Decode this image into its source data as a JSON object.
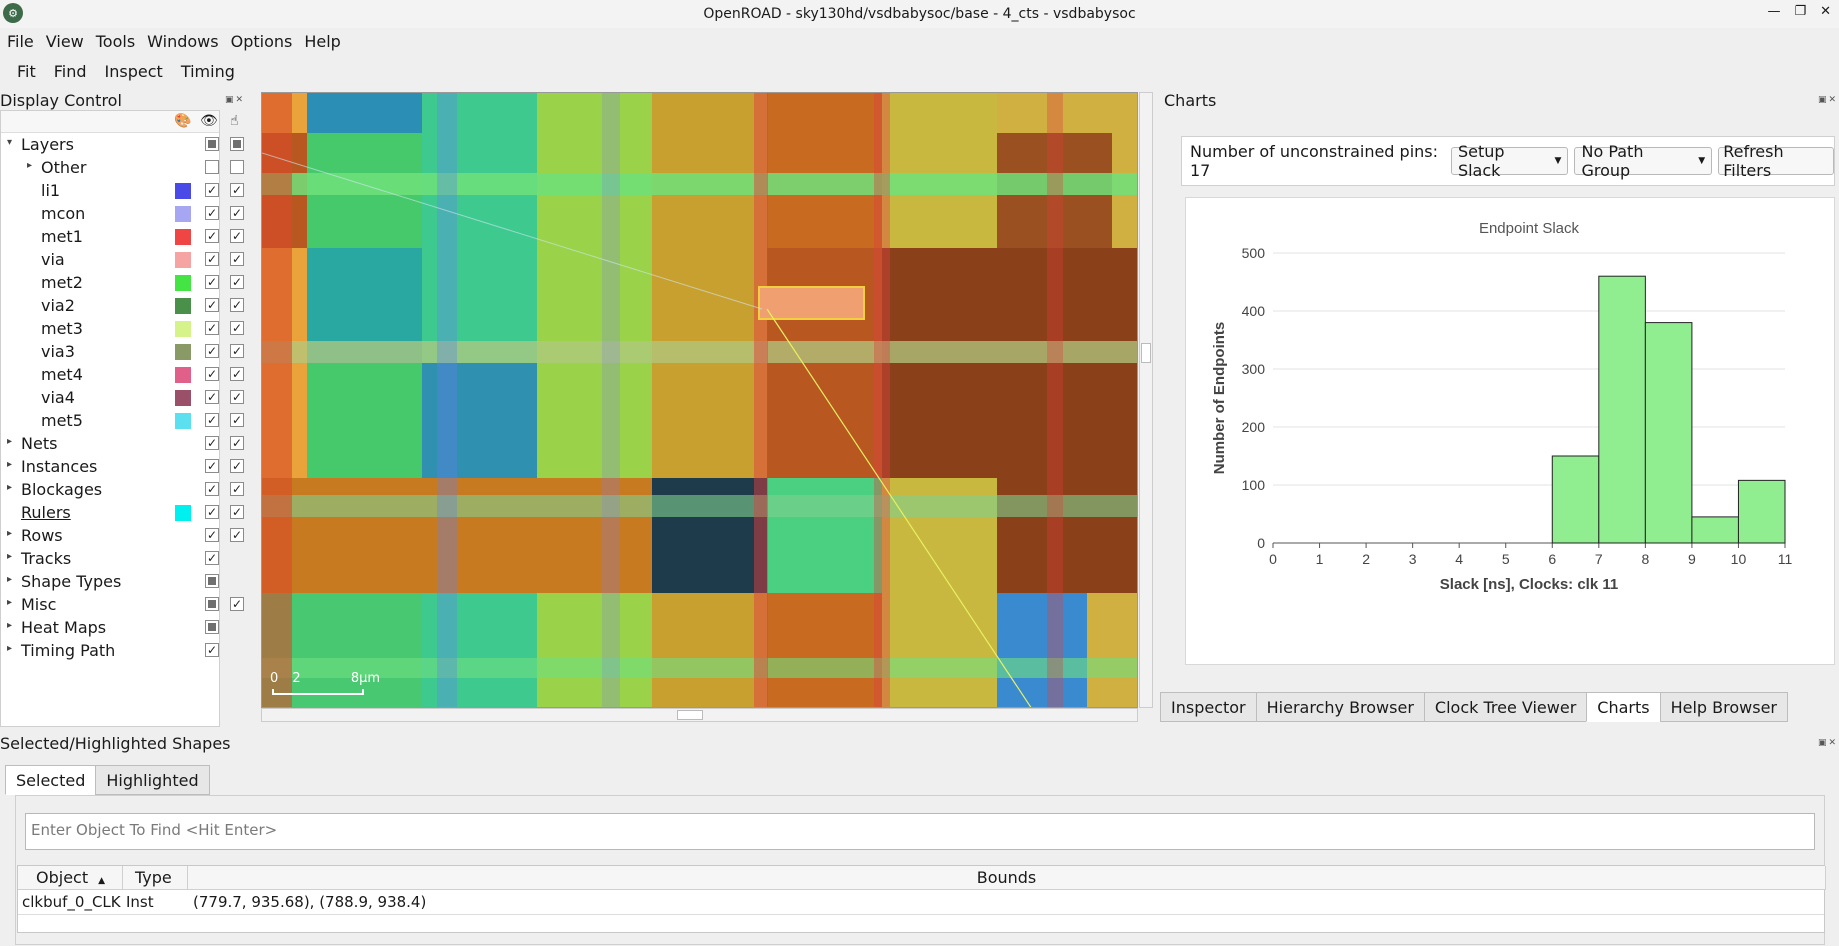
{
  "window": {
    "title": "OpenROAD - sky130hd/vsdbabysoc/base - 4_cts - vsdbabysoc"
  },
  "menu": [
    "File",
    "View",
    "Tools",
    "Windows",
    "Options",
    "Help"
  ],
  "toolbar": [
    "Fit",
    "Find",
    "Inspect",
    "Timing"
  ],
  "display_control": {
    "title": "Display Control",
    "rows": [
      {
        "label": "Layers",
        "indent": 0,
        "tri": "▾",
        "vis": "part",
        "sel": "part"
      },
      {
        "label": "Other",
        "indent": 1,
        "tri": "▸",
        "vis": "empty",
        "sel": "empty"
      },
      {
        "label": "li1",
        "indent": 1,
        "color": "#4a4ae8",
        "vis": "check",
        "sel": "check"
      },
      {
        "label": "mcon",
        "indent": 1,
        "color": "#a6a6f2",
        "vis": "check",
        "sel": "check"
      },
      {
        "label": "met1",
        "indent": 1,
        "color": "#f04545",
        "vis": "check",
        "sel": "check"
      },
      {
        "label": "via",
        "indent": 1,
        "color": "#f5a3a3",
        "vis": "check",
        "sel": "check"
      },
      {
        "label": "met2",
        "indent": 1,
        "color": "#45e445",
        "vis": "check",
        "sel": "check"
      },
      {
        "label": "via2",
        "indent": 1,
        "color": "#4a8f4a",
        "vis": "check",
        "sel": "check"
      },
      {
        "label": "met3",
        "indent": 1,
        "color": "#d6f28a",
        "vis": "check",
        "sel": "check"
      },
      {
        "label": "via3",
        "indent": 1,
        "color": "#8a9a66",
        "vis": "check",
        "sel": "check"
      },
      {
        "label": "met4",
        "indent": 1,
        "color": "#e0608a",
        "vis": "check",
        "sel": "check"
      },
      {
        "label": "via4",
        "indent": 1,
        "color": "#9a5068",
        "vis": "check",
        "sel": "check"
      },
      {
        "label": "met5",
        "indent": 1,
        "color": "#5ce0f0",
        "vis": "check",
        "sel": "check"
      },
      {
        "label": "Nets",
        "indent": 0,
        "tri": "▸",
        "vis": "check",
        "sel": "check"
      },
      {
        "label": "Instances",
        "indent": 0,
        "tri": "▸",
        "vis": "check",
        "sel": "check"
      },
      {
        "label": "Blockages",
        "indent": 0,
        "tri": "▸",
        "vis": "check",
        "sel": "check"
      },
      {
        "label": "Rulers",
        "indent": 0,
        "color": "#00f0f0",
        "vis": "check",
        "sel": "check",
        "underline": true
      },
      {
        "label": "Rows",
        "indent": 0,
        "tri": "▸",
        "vis": "check",
        "sel": "check"
      },
      {
        "label": "Tracks",
        "indent": 0,
        "tri": "▸",
        "vis": "check"
      },
      {
        "label": "Shape Types",
        "indent": 0,
        "tri": "▸",
        "vis": "part"
      },
      {
        "label": "Misc",
        "indent": 0,
        "tri": "▸",
        "vis": "part",
        "sel": "check"
      },
      {
        "label": "Heat Maps",
        "indent": 0,
        "tri": "▸",
        "vis": "part"
      },
      {
        "label": "Timing Path",
        "indent": 0,
        "tri": "▸",
        "vis": "check"
      }
    ]
  },
  "viewer": {
    "scale_labels": [
      "0",
      "2",
      "8μm"
    ]
  },
  "charts": {
    "title": "Charts",
    "unconstrained": "Number of unconstrained pins: 17",
    "mode_select": "Setup Slack",
    "path_group_select": "No Path Group",
    "refresh_label": "Refresh Filters"
  },
  "chart_data": {
    "type": "bar",
    "title": "Endpoint Slack",
    "xlabel": "Slack [ns], Clocks: clk 11",
    "ylabel": "Number of Endpoints",
    "x_ticks": [
      0,
      1,
      2,
      3,
      4,
      5,
      6,
      7,
      8,
      9,
      10,
      11
    ],
    "y_ticks": [
      0,
      100,
      200,
      300,
      400,
      500
    ],
    "xlim": [
      0,
      11
    ],
    "ylim": [
      0,
      500
    ],
    "bins": [
      [
        6,
        7
      ],
      [
        7,
        8
      ],
      [
        8,
        9
      ],
      [
        9,
        10
      ],
      [
        10,
        11
      ]
    ],
    "values": [
      150,
      460,
      380,
      45,
      108
    ],
    "bar_color": "#90ee90",
    "grid": true
  },
  "right_tabs": [
    "Inspector",
    "Hierarchy Browser",
    "Clock Tree Viewer",
    "Charts",
    "Help Browser"
  ],
  "right_active_tab": "Charts",
  "selected": {
    "title": "Selected/Highlighted Shapes",
    "tabs": [
      "Selected",
      "Highlighted"
    ],
    "placeholder": "Enter Object To Find <Hit Enter>",
    "columns": [
      "Object",
      "Type",
      "Bounds"
    ],
    "rows": [
      [
        "clkbuf_0_CLK",
        "Inst",
        "(779.7, 935.68), (788.9, 938.4)"
      ]
    ]
  }
}
